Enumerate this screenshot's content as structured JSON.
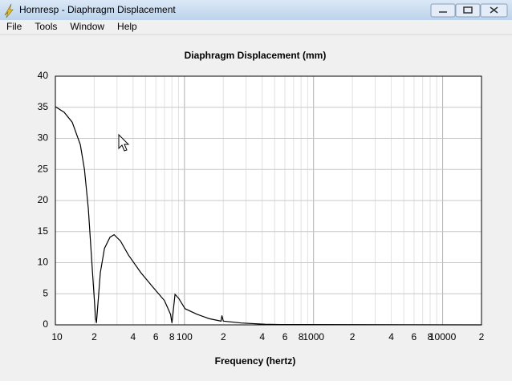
{
  "window": {
    "title": "Hornresp - Diaphragm Displacement",
    "menu": [
      "File",
      "Tools",
      "Window",
      "Help"
    ]
  },
  "chart_data": {
    "type": "line",
    "title": "Diaphragm Displacement (mm)",
    "x_label": "Frequency (hertz)",
    "log_x": true,
    "grid": true,
    "color": "#000000",
    "x": [
      10,
      11.7,
      13.5,
      15.6,
      16.8,
      18,
      19.4,
      20.5,
      20.8,
      22.3,
      24,
      26.5,
      28.5,
      31.9,
      36.9,
      45.9,
      56.8,
      70,
      78,
      80,
      84.5,
      90,
      101,
      125,
      155,
      192,
      195,
      200,
      275,
      420,
      550,
      20000
    ],
    "values": [
      35.1,
      34.2,
      32.6,
      29,
      25,
      18.7,
      8.4,
      1,
      0.3,
      8.4,
      12.3,
      14.1,
      14.5,
      13.5,
      11.2,
      8.4,
      6.1,
      3.9,
      1.7,
      0.3,
      4.9,
      4.3,
      2.6,
      1.7,
      1,
      0.6,
      1.5,
      0.6,
      0.3,
      0.1,
      0.05,
      0
    ],
    "xlim": [
      10,
      20000
    ],
    "ylim": [
      0,
      40
    ],
    "xticks": [
      10,
      {
        "value": 20,
        "label": "2"
      },
      {
        "value": 40,
        "label": "4"
      },
      {
        "value": 60,
        "label": "6"
      },
      {
        "value": 80,
        "label": "8"
      },
      100,
      {
        "value": 200,
        "label": "2"
      },
      {
        "value": 400,
        "label": "4"
      },
      {
        "value": 600,
        "label": "6"
      },
      {
        "value": 800,
        "label": "8"
      },
      1000,
      {
        "value": 2000,
        "label": "2"
      },
      {
        "value": 4000,
        "label": "4"
      },
      {
        "value": 6000,
        "label": "6"
      },
      {
        "value": 8000,
        "label": "8"
      },
      10000,
      {
        "value": 20000,
        "label": "2"
      }
    ],
    "x_minor_ticks": [
      30,
      50,
      70,
      90,
      300,
      500,
      700,
      900,
      3000,
      5000,
      7000,
      9000
    ],
    "yticks": [
      0,
      5,
      10,
      15,
      20,
      25,
      30,
      35,
      40
    ]
  }
}
